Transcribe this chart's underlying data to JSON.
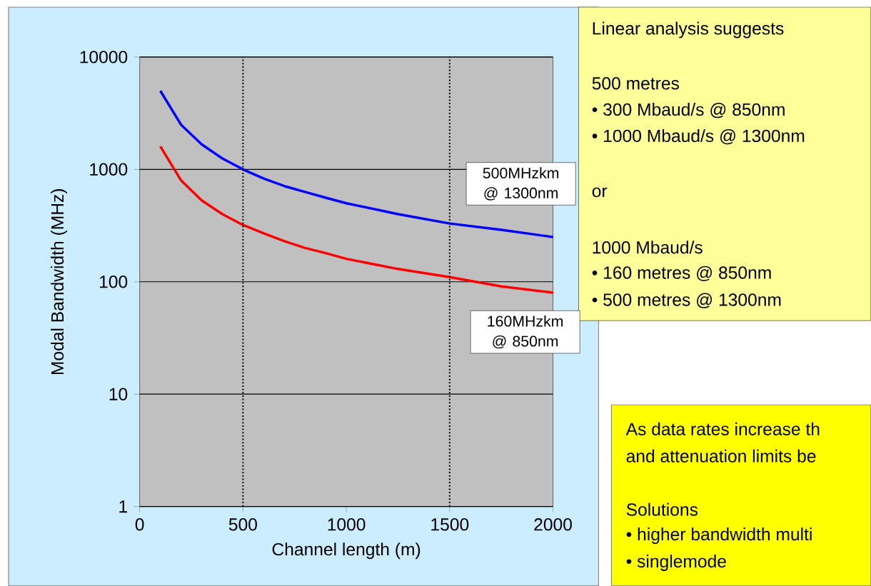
{
  "chart_data": {
    "type": "line",
    "xlabel": "Channel length (m)",
    "ylabel": "Modal Bandwidth (MHz)",
    "x": [
      100,
      200,
      300,
      400,
      500,
      600,
      700,
      800,
      900,
      1000,
      1250,
      1500,
      1750,
      2000
    ],
    "series": [
      {
        "color": "#0000ff",
        "values": [
          5000,
          2500,
          1670,
          1250,
          1000,
          830,
          710,
          630,
          560,
          500,
          400,
          330,
          290,
          250
        ]
      },
      {
        "color": "#ff0000",
        "values": [
          1600,
          800,
          530,
          400,
          320,
          270,
          230,
          200,
          180,
          160,
          130,
          110,
          91,
          80
        ]
      }
    ],
    "xlim": [
      0,
      2000
    ],
    "ylim": [
      1,
      10000
    ],
    "xticks": [
      0,
      500,
      1000,
      1500,
      2000
    ],
    "yticks": [
      1,
      10,
      100,
      1000,
      10000
    ],
    "log": "y",
    "grid": "y",
    "marker": "none",
    "line_style": "solid",
    "ref_lines": [
      {
        "axis": "x",
        "value": 500,
        "color": "#000000",
        "line_style": "dotted"
      },
      {
        "axis": "x",
        "value": 1500,
        "color": "#000000",
        "line_style": "dotted"
      }
    ],
    "annotations": [
      "500MHzkm @ 1300nm",
      "160MHzkm @ 850nm",
      "Linear analysis suggests",
      "500 metres",
      "• 300 Mbaud/s @ 850nm",
      "• 1000 Mbaud/s @ 1300nm",
      "or",
      "1000 Mbaud/s",
      "• 160 metres @ 850nm",
      "• 500 metres @ 1300nm",
      "As data rates increase th",
      "and attenuation limits be",
      "Solutions",
      "• higher bandwidth multi",
      "• singlemode"
    ]
  }
}
